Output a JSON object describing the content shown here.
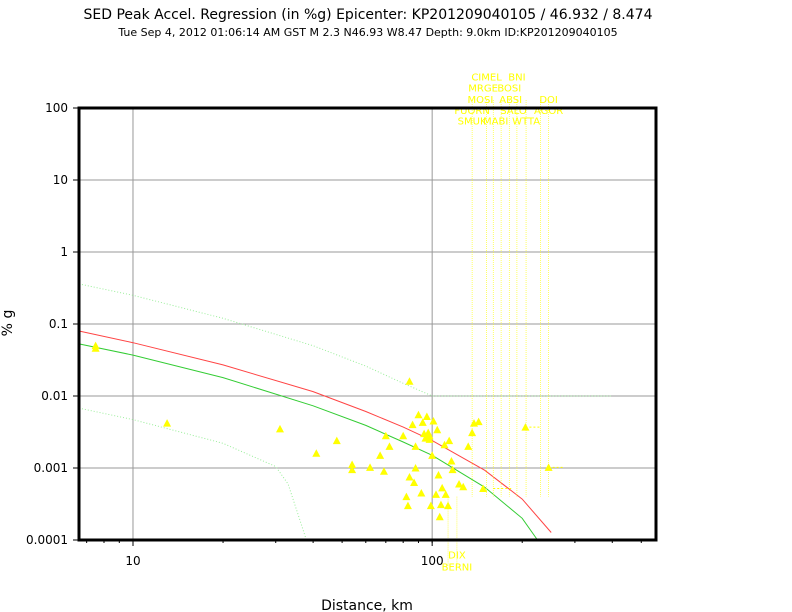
{
  "chart_data": {
    "type": "scatter",
    "title": "SED Peak Accel. Regression (in %g) Epicenter: KP201209040105 / 46.932 / 8.474",
    "subtitle": "Tue Sep  4, 2012 01:06:14 AM GST   M 2.3   N46.93 W8.47   Depth: 9.0km   ID:KP201209040105",
    "xlabel": "Distance, km",
    "ylabel": "% g",
    "x_scale": "log",
    "y_scale": "log",
    "xlim": [
      6.6,
      560
    ],
    "ylim": [
      0.0001,
      100
    ],
    "x_ticks": [
      {
        "v": 10,
        "label": "10"
      },
      {
        "v": 100,
        "label": "100"
      }
    ],
    "y_ticks": [
      {
        "v": 100,
        "label": "100"
      },
      {
        "v": 10,
        "label": "10"
      },
      {
        "v": 1,
        "label": "1"
      },
      {
        "v": 0.1,
        "label": "0.1"
      },
      {
        "v": 0.01,
        "label": "0.01"
      },
      {
        "v": 0.001,
        "label": "0.001"
      },
      {
        "v": 0.0001,
        "label": "0.0001"
      }
    ],
    "grid": true,
    "colors": {
      "regression": "#ff4444",
      "observed_fit": "#33cc33",
      "bounds": "#99ee99",
      "stations": "#ffff00",
      "grid": "#999999"
    },
    "series": [
      {
        "role": "regression",
        "x": [
          6.6,
          10,
          20,
          40,
          60,
          80,
          100,
          150,
          200,
          250
        ],
        "y": [
          0.08,
          0.055,
          0.027,
          0.0115,
          0.0061,
          0.0037,
          0.0024,
          0.00093,
          0.00037,
          0.000127
        ]
      },
      {
        "role": "observed_fit",
        "x": [
          6.6,
          10,
          20,
          40,
          60,
          80,
          100,
          150,
          200,
          225
        ],
        "y": [
          0.053,
          0.037,
          0.018,
          0.0073,
          0.0039,
          0.0023,
          0.0015,
          0.00054,
          0.0002,
          0.0001
        ]
      },
      {
        "role": "upper_bound",
        "x": [
          6.6,
          10,
          20,
          40,
          60,
          80,
          100,
          150,
          300,
          400
        ],
        "y": [
          0.36,
          0.25,
          0.12,
          0.05,
          0.026,
          0.015,
          0.01,
          0.01,
          0.01,
          0.01
        ]
      },
      {
        "role": "lower_bound",
        "x": [
          6.6,
          10,
          20,
          30,
          33,
          38
        ],
        "y": [
          0.0068,
          0.0047,
          0.0022,
          0.00105,
          0.0006,
          0.0001
        ]
      },
      {
        "role": "stations",
        "x": [
          7.5,
          7.5,
          13,
          31,
          41,
          48,
          54,
          54,
          62,
          67,
          69,
          70,
          72,
          80,
          82,
          83,
          84,
          84,
          86,
          87,
          88,
          88,
          90,
          92,
          93,
          94,
          95,
          96,
          97,
          98,
          98,
          99,
          100,
          101,
          103,
          104,
          105,
          106,
          107,
          108,
          110,
          111,
          113,
          114,
          116,
          117,
          123,
          127,
          132,
          136,
          138,
          143,
          148,
          205,
          245
        ],
        "y": [
          0.05,
          0.046,
          0.0042,
          0.0035,
          0.0016,
          0.0024,
          0.00112,
          0.00095,
          0.00102,
          0.0015,
          0.0009,
          0.0028,
          0.002,
          0.0028,
          0.0004,
          0.0003,
          0.016,
          0.00075,
          0.004,
          0.00063,
          0.002,
          0.001,
          0.0055,
          0.00045,
          0.0043,
          0.003,
          0.0026,
          0.0052,
          0.0031,
          0.0028,
          0.0025,
          0.0003,
          0.0015,
          0.0045,
          0.00043,
          0.0034,
          0.0008,
          0.00021,
          0.00031,
          0.00053,
          0.0021,
          0.00043,
          0.0003,
          0.0024,
          0.00125,
          0.00095,
          0.0006,
          0.00055,
          0.002,
          0.0031,
          0.0042,
          0.0044,
          0.00052,
          0.0037,
          0.00102
        ]
      }
    ],
    "station_labels": [
      {
        "text": "CIMEL",
        "x": 152,
        "y": 240
      },
      {
        "text": "MRGE",
        "x": 148,
        "y": 170
      },
      {
        "text": "MOSI",
        "x": 145,
        "y": 118
      },
      {
        "text": "FUORN",
        "x": 136,
        "y": 83
      },
      {
        "text": "SMUK",
        "x": 136,
        "y": 59
      },
      {
        "text": "BNI",
        "x": 192,
        "y": 240
      },
      {
        "text": "BOSI",
        "x": 181,
        "y": 170
      },
      {
        "text": "ABSI",
        "x": 183,
        "y": 118
      },
      {
        "text": "SALO",
        "x": 187,
        "y": 83
      },
      {
        "text": "MABI",
        "x": 163,
        "y": 59
      },
      {
        "text": "WTTA",
        "x": 206,
        "y": 59
      },
      {
        "text": "DOI",
        "x": 245,
        "y": 118
      },
      {
        "text": "AGOR",
        "x": 245,
        "y": 83
      },
      {
        "text": "DIX",
        "x": 121,
        "y": 5.5e-05
      },
      {
        "text": "BERNI",
        "x": 121,
        "y": 3.8e-05
      }
    ]
  }
}
